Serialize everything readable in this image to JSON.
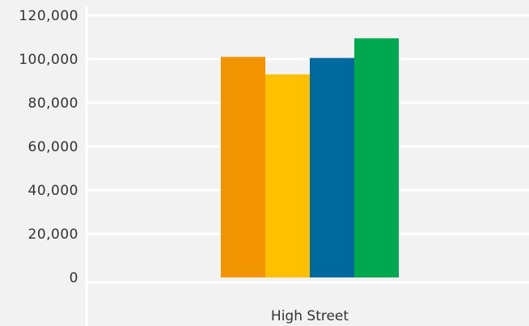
{
  "chart_data": {
    "type": "bar",
    "categories": [
      "High Street"
    ],
    "series": [
      {
        "values": [
          101000
        ],
        "color": "#f29400"
      },
      {
        "values": [
          93000
        ],
        "color": "#ffc000"
      },
      {
        "values": [
          100500
        ],
        "color": "#00699d"
      },
      {
        "values": [
          109500
        ],
        "color": "#00a94f"
      }
    ],
    "yticks": [
      "0",
      "20,000",
      "40,000",
      "60,000",
      "80,000",
      "100,000",
      "120,000"
    ],
    "ylim": [
      0,
      120000
    ],
    "grid": true,
    "title": "",
    "xlabel": "",
    "ylabel": ""
  },
  "colors": {
    "background": "#f2f2f2",
    "gridline": "#ffffff",
    "text": "#333333"
  }
}
